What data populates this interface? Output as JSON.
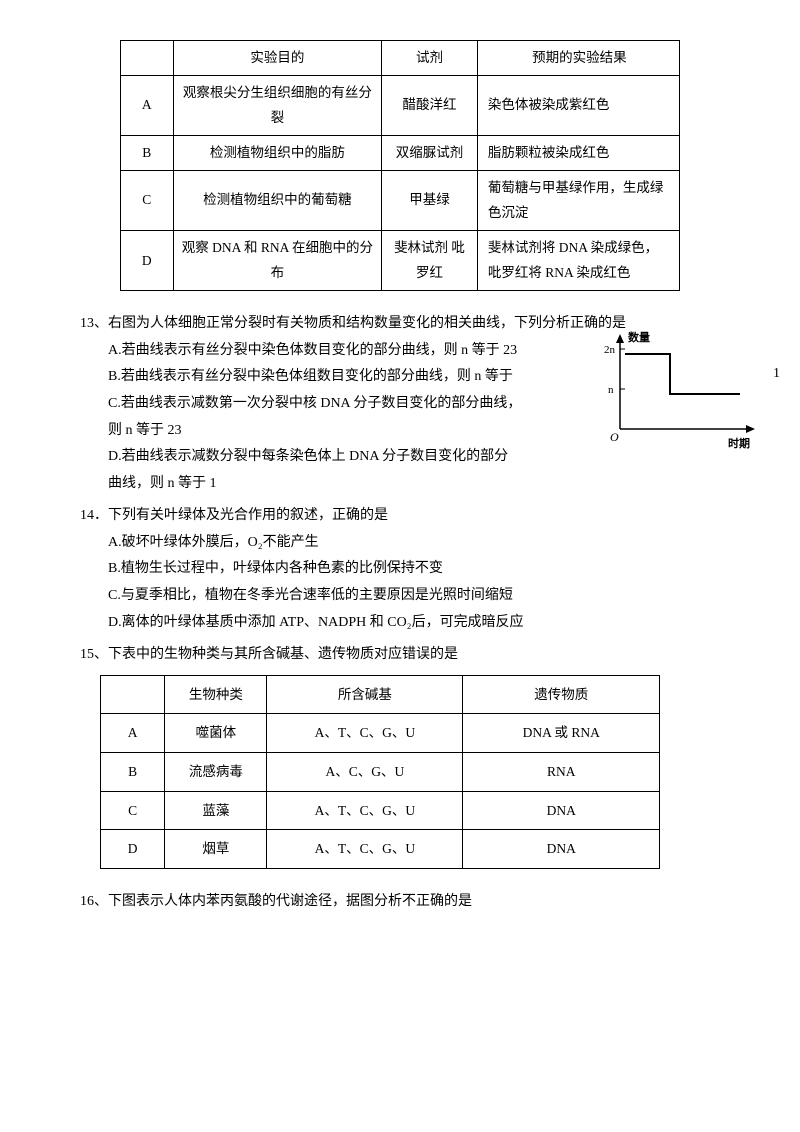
{
  "table1": {
    "headers": [
      "",
      "实验目的",
      "试剂",
      "预期的实验结果"
    ],
    "rows": [
      [
        "A",
        "观察根尖分生组织细胞的有丝分裂",
        "醋酸洋红",
        "染色体被染成紫红色"
      ],
      [
        "B",
        "检测植物组织中的脂肪",
        "双缩脲试剂",
        "脂肪颗粒被染成红色"
      ],
      [
        "C",
        "检测植物组织中的葡萄糖",
        "甲基绿",
        "葡萄糖与甲基绿作用，生成绿色沉淀"
      ],
      [
        "D",
        "观察 DNA 和 RNA 在细胞中的分布",
        "斐林试剂 吡罗红",
        "斐林试剂将 DNA 染成绿色，吡罗红将 RNA 染成红色"
      ]
    ]
  },
  "q13": {
    "stem": "13、右图为人体细胞正常分裂时有关物质和结构数量变化的相关曲线，下列分析正确的是",
    "opts": {
      "A": "A.若曲线表示有丝分裂中染色体数目变化的部分曲线，则 n 等于 23",
      "B": "B.若曲线表示有丝分裂中染色体组数目变化的部分曲线，则 n 等于",
      "C": "C.若曲线表示减数第一次分裂中核 DNA 分子数目变化的部分曲线，",
      "Cextra": "则 n 等于 23",
      "D": "D.若曲线表示减数分裂中每条染色体上 DNA 分子数目变化的部分",
      "Dextra": "曲线，则 n 等于 1"
    },
    "side_num": "1",
    "chart": {
      "y_label": "数量",
      "x_label": "时期",
      "y_ticks": [
        "2n",
        "n"
      ],
      "line_color": "#000000",
      "axis_color": "#000000",
      "background": "#ffffff",
      "step_x": [
        20,
        70,
        70,
        110,
        110,
        150
      ],
      "step_y": [
        20,
        20,
        60,
        60,
        60,
        60
      ],
      "tick_2n_y": 20,
      "tick_n_y": 60,
      "origin_label": "O"
    }
  },
  "q14": {
    "stem": "14．下列有关叶绿体及光合作用的叙述，正确的是",
    "opts": {
      "A": "A.破坏叶绿体外膜后，O₂不能产生",
      "B": "B.植物生长过程中，叶绿体内各种色素的比例保持不变",
      "C": "C.与夏季相比，植物在冬季光合速率低的主要原因是光照时间缩短",
      "D": "D.离体的叶绿体基质中添加 ATP、NADPH 和 CO₂后，可完成暗反应"
    }
  },
  "q15": {
    "stem": "15、下表中的生物种类与其所含碱基、遗传物质对应错误的是",
    "headers": [
      "",
      "生物种类",
      "所含碱基",
      "遗传物质"
    ],
    "rows": [
      [
        "A",
        "噬菌体",
        "A、T、C、G、U",
        "DNA 或 RNA"
      ],
      [
        "B",
        "流感病毒",
        "A、C、G、U",
        "RNA"
      ],
      [
        "C",
        "蓝藻",
        "A、T、C、G、U",
        "DNA"
      ],
      [
        "D",
        "烟草",
        "A、T、C、G、U",
        "DNA"
      ]
    ]
  },
  "q16": {
    "stem": "16、下图表示人体内苯丙氨酸的代谢途径，据图分析不正确的是"
  }
}
